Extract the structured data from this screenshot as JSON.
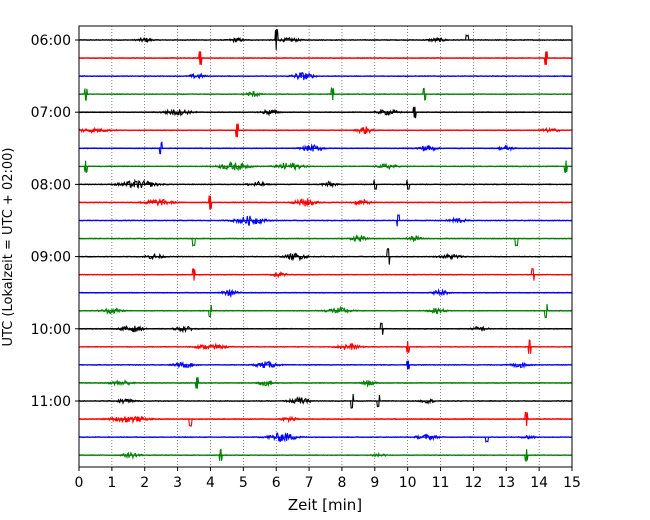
{
  "chart_data": {
    "type": "line",
    "subtype": "helicorder-seismogram",
    "xlabel": "Zeit  [min]",
    "ylabel": "UTC (Lokalzeit = UTC + 02:00)",
    "xlim": [
      0,
      15
    ],
    "x_ticks": [
      "0",
      "1",
      "2",
      "3",
      "4",
      "5",
      "6",
      "7",
      "8",
      "9",
      "10",
      "11",
      "12",
      "13",
      "14",
      "15"
    ],
    "y_tick_labels": [
      "06:00",
      "07:00",
      "08:00",
      "09:00",
      "10:00",
      "11:00"
    ],
    "grid": "vertical dotted lines at each minute",
    "trace_colors": [
      "#000000",
      "#ff0000",
      "#0000ff",
      "#008000"
    ],
    "traces": [
      {
        "start": "06:00",
        "color": "#000000",
        "events": [
          [
            6.0,
            0.9
          ],
          [
            11.8,
            0.4
          ]
        ],
        "bursts": [
          [
            6.4,
            0.6,
            0.3
          ],
          [
            2.0,
            0.7,
            0.2
          ],
          [
            4.8,
            0.6,
            0.2
          ],
          [
            10.9,
            0.6,
            0.25
          ]
        ]
      },
      {
        "start": "06:15",
        "color": "#ff0000",
        "events": [
          [
            3.7,
            0.6
          ],
          [
            14.2,
            0.6
          ]
        ],
        "bursts": []
      },
      {
        "start": "06:30",
        "color": "#0000ff",
        "events": [],
        "bursts": [
          [
            6.8,
            1.2,
            0.3
          ],
          [
            3.6,
            0.8,
            0.2
          ]
        ]
      },
      {
        "start": "06:45",
        "color": "#008000",
        "events": [
          [
            0.2,
            0.5
          ],
          [
            7.7,
            0.5
          ],
          [
            10.5,
            0.5
          ]
        ],
        "bursts": [
          [
            5.3,
            0.9,
            0.2
          ]
        ]
      },
      {
        "start": "07:00",
        "color": "#000000",
        "events": [
          [
            10.2,
            0.5
          ]
        ],
        "bursts": [
          [
            3.0,
            0.9,
            0.4
          ],
          [
            5.8,
            0.8,
            0.25
          ],
          [
            9.4,
            0.8,
            0.3
          ]
        ]
      },
      {
        "start": "07:15",
        "color": "#ff0000",
        "events": [
          [
            4.8,
            0.6
          ]
        ],
        "bursts": [
          [
            0.4,
            0.6,
            0.5
          ],
          [
            8.7,
            1.2,
            0.2
          ],
          [
            14.3,
            0.5,
            0.3
          ]
        ]
      },
      {
        "start": "07:30",
        "color": "#0000ff",
        "events": [
          [
            2.5,
            0.5
          ]
        ],
        "bursts": [
          [
            7.1,
            1.0,
            0.3
          ],
          [
            10.6,
            1.0,
            0.25
          ],
          [
            13.0,
            0.8,
            0.2
          ]
        ]
      },
      {
        "start": "07:45",
        "color": "#008000",
        "events": [
          [
            0.2,
            0.5
          ],
          [
            14.8,
            0.5
          ]
        ],
        "bursts": [
          [
            4.7,
            1.2,
            0.4
          ],
          [
            6.4,
            1.2,
            0.35
          ],
          [
            9.4,
            0.8,
            0.25
          ]
        ]
      },
      {
        "start": "08:00",
        "color": "#000000",
        "events": [
          [
            9.0,
            0.4
          ],
          [
            10.0,
            0.4
          ]
        ],
        "bursts": [
          [
            1.8,
            1.2,
            0.5
          ],
          [
            5.4,
            0.8,
            0.25
          ],
          [
            7.6,
            0.8,
            0.2
          ]
        ]
      },
      {
        "start": "08:15",
        "color": "#ff0000",
        "events": [
          [
            4.0,
            0.6
          ]
        ],
        "bursts": [
          [
            2.4,
            1.0,
            0.4
          ],
          [
            6.9,
            1.3,
            0.3
          ],
          [
            8.6,
            0.8,
            0.25
          ]
        ]
      },
      {
        "start": "08:30",
        "color": "#0000ff",
        "events": [
          [
            9.7,
            0.5
          ]
        ],
        "bursts": [
          [
            5.2,
            1.4,
            0.4
          ],
          [
            11.5,
            0.8,
            0.25
          ]
        ]
      },
      {
        "start": "08:45",
        "color": "#008000",
        "events": [
          [
            3.5,
            0.6
          ],
          [
            13.3,
            0.6
          ]
        ],
        "bursts": [
          [
            8.5,
            1.0,
            0.2
          ],
          [
            10.2,
            0.8,
            0.2
          ]
        ]
      },
      {
        "start": "09:00",
        "color": "#000000",
        "events": [
          [
            9.4,
            0.7
          ]
        ],
        "bursts": [
          [
            2.3,
            0.8,
            0.25
          ],
          [
            6.6,
            1.0,
            0.3
          ],
          [
            11.3,
            0.8,
            0.3
          ]
        ]
      },
      {
        "start": "09:15",
        "color": "#ff0000",
        "events": [
          [
            3.5,
            0.5
          ],
          [
            13.8,
            0.5
          ]
        ],
        "bursts": [
          [
            6.1,
            0.8,
            0.2
          ]
        ]
      },
      {
        "start": "09:30",
        "color": "#0000ff",
        "events": [],
        "bursts": [
          [
            4.6,
            1.0,
            0.2
          ],
          [
            11.0,
            1.0,
            0.2
          ]
        ]
      },
      {
        "start": "09:45",
        "color": "#008000",
        "events": [
          [
            4.0,
            0.5
          ],
          [
            14.2,
            0.6
          ]
        ],
        "bursts": [
          [
            1.0,
            0.8,
            0.3
          ],
          [
            7.9,
            1.0,
            0.35
          ],
          [
            10.9,
            0.8,
            0.25
          ]
        ]
      },
      {
        "start": "10:00",
        "color": "#000000",
        "events": [
          [
            9.2,
            0.5
          ]
        ],
        "bursts": [
          [
            1.6,
            1.0,
            0.3
          ],
          [
            3.2,
            0.8,
            0.25
          ],
          [
            12.2,
            0.8,
            0.2
          ]
        ]
      },
      {
        "start": "10:15",
        "color": "#ff0000",
        "events": [
          [
            10.0,
            0.5
          ],
          [
            13.7,
            0.6
          ]
        ],
        "bursts": [
          [
            4.0,
            0.8,
            0.4
          ],
          [
            8.2,
            1.0,
            0.3
          ]
        ]
      },
      {
        "start": "10:30",
        "color": "#0000ff",
        "events": [
          [
            10.0,
            0.4
          ]
        ],
        "bursts": [
          [
            3.2,
            0.8,
            0.3
          ],
          [
            5.7,
            1.0,
            0.3
          ],
          [
            13.4,
            0.8,
            0.25
          ]
        ]
      },
      {
        "start": "10:45",
        "color": "#008000",
        "events": [
          [
            3.6,
            0.5
          ]
        ],
        "bursts": [
          [
            1.3,
            0.8,
            0.3
          ],
          [
            5.7,
            0.8,
            0.25
          ],
          [
            8.8,
            0.8,
            0.2
          ]
        ]
      },
      {
        "start": "11:00",
        "color": "#000000",
        "events": [
          [
            8.3,
            0.6
          ],
          [
            9.1,
            0.5
          ]
        ],
        "bursts": [
          [
            1.4,
            0.7,
            0.25
          ],
          [
            6.7,
            1.0,
            0.3
          ],
          [
            10.6,
            0.6,
            0.2
          ]
        ]
      },
      {
        "start": "11:15",
        "color": "#ff0000",
        "events": [
          [
            3.4,
            0.6
          ],
          [
            13.6,
            0.6
          ]
        ],
        "bursts": [
          [
            1.5,
            1.0,
            0.5
          ],
          [
            6.4,
            0.8,
            0.2
          ]
        ]
      },
      {
        "start": "11:30",
        "color": "#0000ff",
        "events": [
          [
            12.4,
            0.4
          ]
        ],
        "bursts": [
          [
            6.2,
            1.4,
            0.4
          ],
          [
            10.6,
            0.8,
            0.3
          ],
          [
            13.7,
            0.6,
            0.2
          ]
        ]
      },
      {
        "start": "11:45",
        "color": "#008000",
        "events": [
          [
            4.3,
            0.5
          ],
          [
            13.6,
            0.5
          ]
        ],
        "bursts": [
          [
            1.6,
            0.8,
            0.25
          ],
          [
            9.1,
            0.6,
            0.2
          ]
        ]
      }
    ]
  }
}
